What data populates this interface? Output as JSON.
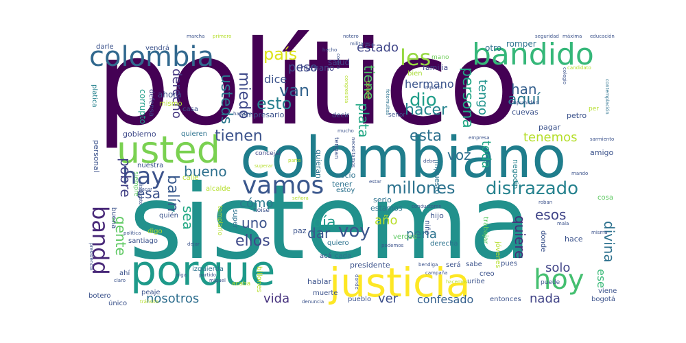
{
  "words": [
    {
      "text": "político",
      "size": 170,
      "color": "#440154",
      "rot": 0
    },
    {
      "text": "sistema",
      "size": 150,
      "color": "#21918c",
      "rot": 0
    },
    {
      "text": "colombiano",
      "size": 82,
      "color": "#1f7d8c",
      "rot": 0
    },
    {
      "text": "justicia",
      "size": 58,
      "color": "#fde725",
      "rot": 0
    },
    {
      "text": "porque",
      "size": 60,
      "color": "#1e9a8a",
      "rot": 0
    },
    {
      "text": "usted",
      "size": 54,
      "color": "#7ad151",
      "rot": 0
    },
    {
      "text": "bandido",
      "size": 44,
      "color": "#35b779",
      "rot": 0
    },
    {
      "text": "colombia",
      "size": 40,
      "color": "#31688e",
      "rot": 0
    },
    {
      "text": "hoy",
      "size": 40,
      "color": "#44bf70",
      "rot": 0
    },
    {
      "text": "vamos",
      "size": 36,
      "color": "#39568c",
      "rot": 0
    },
    {
      "text": "hay",
      "size": 34,
      "color": "#3b528b",
      "rot": 0
    },
    {
      "text": "bandd",
      "size": 32,
      "color": "#482878",
      "rot": 90
    },
    {
      "text": "disfrazado",
      "size": 26,
      "color": "#26828e",
      "rot": 0
    },
    {
      "text": "millones",
      "size": 24,
      "color": "#2c728e",
      "rot": 0
    },
    {
      "text": "les",
      "size": 32,
      "color": "#95d840",
      "rot": 0
    },
    {
      "text": "país",
      "size": 24,
      "color": "#dce319",
      "rot": 0
    },
    {
      "text": "estado",
      "size": 18,
      "color": "#404688",
      "rot": 0
    },
    {
      "text": "van",
      "size": 24,
      "color": "#33638d",
      "rot": 0
    },
    {
      "text": "esto",
      "size": 24,
      "color": "#27808e",
      "rot": 0
    },
    {
      "text": "dio",
      "size": 26,
      "color": "#1f9e89",
      "rot": 0
    },
    {
      "text": "hacer",
      "size": 22,
      "color": "#25848e",
      "rot": 0
    },
    {
      "text": "aquí",
      "size": 22,
      "color": "#2a788e",
      "rot": 0
    },
    {
      "text": "han",
      "size": 20,
      "color": "#345f8d",
      "rot": 0
    },
    {
      "text": "persona",
      "size": 22,
      "color": "#21a685",
      "rot": 90
    },
    {
      "text": "plata",
      "size": 20,
      "color": "#22a884",
      "rot": 90
    },
    {
      "text": "tiene",
      "size": 20,
      "color": "#52c569",
      "rot": 90
    },
    {
      "text": "tengo",
      "size": 18,
      "color": "#20938c",
      "rot": 90
    },
    {
      "text": "usteds",
      "size": 22,
      "color": "#2a788e",
      "rot": 90
    },
    {
      "text": "miedo",
      "size": 22,
      "color": "#3e4989",
      "rot": 90
    },
    {
      "text": "derecho",
      "size": 18,
      "color": "#453781",
      "rot": 90
    },
    {
      "text": "tienen",
      "size": 22,
      "color": "#3b528b",
      "rot": 0
    },
    {
      "text": "esta",
      "size": 22,
      "color": "#2d718e",
      "rot": 0
    },
    {
      "text": "tenemos",
      "size": 18,
      "color": "#b5de2b",
      "rot": 0
    },
    {
      "text": "voz",
      "size": 20,
      "color": "#2e6f8e",
      "rot": 0
    },
    {
      "text": "toda",
      "size": 18,
      "color": "#21a685",
      "rot": 90
    },
    {
      "text": "bueno",
      "size": 20,
      "color": "#2d708e",
      "rot": 0
    },
    {
      "text": "pobre",
      "size": 20,
      "color": "#424086",
      "rot": 90
    },
    {
      "text": "esa",
      "size": 20,
      "color": "#3b528b",
      "rot": 0
    },
    {
      "text": "balín",
      "size": 22,
      "color": "#38588c",
      "rot": 90
    },
    {
      "text": "sea",
      "size": 20,
      "color": "#22a884",
      "rot": 90
    },
    {
      "text": "gente",
      "size": 20,
      "color": "#5ec962",
      "rot": 90
    },
    {
      "text": "cómo",
      "size": 18,
      "color": "#2a788e",
      "rot": 0
    },
    {
      "text": "uno",
      "size": 20,
      "color": "#3b528b",
      "rot": 0
    },
    {
      "text": "ellos",
      "size": 22,
      "color": "#3e4989",
      "rot": 0
    },
    {
      "text": "día",
      "size": 22,
      "color": "#1f9a8a",
      "rot": 0
    },
    {
      "text": "año",
      "size": 18,
      "color": "#b8de29",
      "rot": 0
    },
    {
      "text": "voy",
      "size": 26,
      "color": "#3a548c",
      "rot": 0
    },
    {
      "text": "dar",
      "size": 20,
      "color": "#39558c",
      "rot": 0
    },
    {
      "text": "pena",
      "size": 18,
      "color": "#2c728e",
      "rot": 0
    },
    {
      "text": "esos",
      "size": 20,
      "color": "#404588",
      "rot": 0
    },
    {
      "text": "quiere",
      "size": 20,
      "color": "#472c7a",
      "rot": 90
    },
    {
      "text": "divina",
      "size": 20,
      "color": "#2d718e",
      "rot": 90
    },
    {
      "text": "solo",
      "size": 18,
      "color": "#414487",
      "rot": 0
    },
    {
      "text": "ese",
      "size": 16,
      "color": "#39b977",
      "rot": 90
    },
    {
      "text": "nada",
      "size": 18,
      "color": "#414487",
      "rot": 0
    },
    {
      "text": "nosotros",
      "size": 18,
      "color": "#2e6e8e",
      "rot": 0
    },
    {
      "text": "vida",
      "size": 18,
      "color": "#46327e",
      "rot": 0
    },
    {
      "text": "ver",
      "size": 18,
      "color": "#3c4f8a",
      "rot": 0
    },
    {
      "text": "confesado",
      "size": 16,
      "color": "#35608d",
      "rot": 0
    },
    {
      "text": "peso",
      "size": 18,
      "color": "#3e4a89",
      "rot": 0
    },
    {
      "text": "dice",
      "size": 16,
      "color": "#3b528b",
      "rot": 0
    },
    {
      "text": "hermano",
      "size": 16,
      "color": "#3a548c",
      "rot": 0
    },
    {
      "text": "salud",
      "size": 12,
      "color": "#404688",
      "rot": 0
    },
    {
      "text": "humano",
      "size": 12,
      "color": "#404688",
      "rot": 0
    },
    {
      "text": "familia",
      "size": 11,
      "color": "#404688",
      "rot": 0
    },
    {
      "text": "otro",
      "size": 12,
      "color": "#2d718e",
      "rot": 0
    },
    {
      "text": "romper",
      "size": 12,
      "color": "#2c728e",
      "rot": 0
    },
    {
      "text": "mano",
      "size": 9,
      "color": "#6ece58",
      "rot": 0
    },
    {
      "text": "bien",
      "size": 10,
      "color": "#a8db34",
      "rot": 0
    },
    {
      "text": "corrupto",
      "size": 12,
      "color": "#1f9e89",
      "rot": 90
    },
    {
      "text": "ahora",
      "size": 12,
      "color": "#3b528b",
      "rot": 0
    },
    {
      "text": "mismo",
      "size": 10,
      "color": "#b5de2b",
      "rot": 0
    },
    {
      "text": "casa",
      "size": 10,
      "color": "#3b528b",
      "rot": 0
    },
    {
      "text": "defensa",
      "size": 10,
      "color": "#404688",
      "rot": 90
    },
    {
      "text": "platica",
      "size": 10,
      "color": "#26828e",
      "rot": 90
    },
    {
      "text": "empresario",
      "size": 11,
      "color": "#3b528b",
      "rot": 0
    },
    {
      "text": "gobierno",
      "size": 11,
      "color": "#3e4989",
      "rot": 0
    },
    {
      "text": "quieren",
      "size": 10,
      "color": "#2c728e",
      "rot": 0
    },
    {
      "text": "personal",
      "size": 11,
      "color": "#3b528b",
      "rot": 90
    },
    {
      "text": "nuestra",
      "size": 10,
      "color": "#3b528b",
      "rot": 0
    },
    {
      "text": "siempre",
      "size": 9,
      "color": "#5ec962",
      "rot": 90
    },
    {
      "text": "calle",
      "size": 10,
      "color": "#b5de2b",
      "rot": 0
    },
    {
      "text": "alcalde",
      "size": 10,
      "color": "#b5de2b",
      "rot": 0
    },
    {
      "text": "concejal",
      "size": 9,
      "color": "#404688",
      "rot": 0
    },
    {
      "text": "socio",
      "size": 11,
      "color": "#2c728e",
      "rot": 0
    },
    {
      "text": "quieran",
      "size": 11,
      "color": "#2c728e",
      "rot": 90
    },
    {
      "text": "impuesto",
      "size": 11,
      "color": "#2c728e",
      "rot": 90
    },
    {
      "text": "negocio",
      "size": 11,
      "color": "#26828e",
      "rot": 90
    },
    {
      "text": "amigo",
      "size": 11,
      "color": "#3b528b",
      "rot": 0
    },
    {
      "text": "pagar",
      "size": 11,
      "color": "#3b528b",
      "rot": 0
    },
    {
      "text": "cuevas",
      "size": 11,
      "color": "#3b528b",
      "rot": 0
    },
    {
      "text": "petro",
      "size": 11,
      "color": "#3b528b",
      "rot": 0
    },
    {
      "text": "tener",
      "size": 11,
      "color": "#2c728e",
      "rot": 0
    },
    {
      "text": "estoy",
      "size": 10,
      "color": "#2c728e",
      "rot": 0
    },
    {
      "text": "serio",
      "size": 11,
      "color": "#2c728e",
      "rot": 0
    },
    {
      "text": "estamos",
      "size": 11,
      "color": "#2c728e",
      "rot": 0
    },
    {
      "text": "hijo",
      "size": 11,
      "color": "#3b528b",
      "rot": 0
    },
    {
      "text": "paz",
      "size": 11,
      "color": "#3b528b",
      "rot": 0
    },
    {
      "text": "niño",
      "size": 10,
      "color": "#3b528b",
      "rot": 90
    },
    {
      "text": "trabajar",
      "size": 10,
      "color": "#5ec962",
      "rot": 90
    },
    {
      "text": "jóvenes",
      "size": 10,
      "color": "#b5de2b",
      "rot": 90
    },
    {
      "text": "derecha",
      "size": 10,
      "color": "#2c728e",
      "rot": 0
    },
    {
      "text": "hace",
      "size": 11,
      "color": "#3b528b",
      "rot": 0
    },
    {
      "text": "donde",
      "size": 10,
      "color": "#3b528b",
      "rot": 90
    },
    {
      "text": "cosa",
      "size": 10,
      "color": "#5ec962",
      "rot": 0
    },
    {
      "text": "quién",
      "size": 10,
      "color": "#3b528b",
      "rot": 0
    },
    {
      "text": "santiago",
      "size": 10,
      "color": "#3b528b",
      "rot": 0
    },
    {
      "text": "digo",
      "size": 10,
      "color": "#b5de2b",
      "rot": 0
    },
    {
      "text": "buena",
      "size": 10,
      "color": "#3b528b",
      "rot": 90
    },
    {
      "text": "super",
      "size": 10,
      "color": "#2c728e",
      "rot": 90
    },
    {
      "text": "noise",
      "size": 9,
      "color": "#3b528b",
      "rot": 0
    },
    {
      "text": "templario",
      "size": 9,
      "color": "#b5de2b",
      "rot": 90
    },
    {
      "text": "quiero",
      "size": 10,
      "color": "#2c728e",
      "rot": 0
    },
    {
      "text": "presidente",
      "size": 11,
      "color": "#3b528b",
      "rot": 0
    },
    {
      "text": "cada",
      "size": 10,
      "color": "#2c728e",
      "rot": 0
    },
    {
      "text": "acá",
      "size": 10,
      "color": "#3b528b",
      "rot": 0
    },
    {
      "text": "será",
      "size": 10,
      "color": "#3b528b",
      "rot": 0
    },
    {
      "text": "sabe",
      "size": 10,
      "color": "#3b528b",
      "rot": 0
    },
    {
      "text": "pues",
      "size": 10,
      "color": "#3b528b",
      "rot": 0
    },
    {
      "text": "ahí",
      "size": 10,
      "color": "#3b528b",
      "rot": 0
    },
    {
      "text": "izquierda",
      "size": 10,
      "color": "#2c728e",
      "rot": 0
    },
    {
      "text": "billones",
      "size": 10,
      "color": "#b5de2b",
      "rot": 90
    },
    {
      "text": "hablar",
      "size": 11,
      "color": "#3b528b",
      "rot": 0
    },
    {
      "text": "creo",
      "size": 10,
      "color": "#3b528b",
      "rot": 0
    },
    {
      "text": "uribe",
      "size": 10,
      "color": "#3b528b",
      "rot": 0
    },
    {
      "text": "muerte",
      "size": 10,
      "color": "#3b528b",
      "rot": 0
    },
    {
      "text": "pueblo",
      "size": 10,
      "color": "#3b528b",
      "rot": 0
    },
    {
      "text": "entonces",
      "size": 10,
      "color": "#3b528b",
      "rot": 0
    },
    {
      "text": "bogotá",
      "size": 10,
      "color": "#3b528b",
      "rot": 0
    },
    {
      "text": "viene",
      "size": 10,
      "color": "#3b528b",
      "rot": 0
    },
    {
      "text": "botero",
      "size": 10,
      "color": "#3b528b",
      "rot": 0
    },
    {
      "text": "único",
      "size": 10,
      "color": "#3b528b",
      "rot": 0
    },
    {
      "text": "peaje",
      "size": 10,
      "color": "#3b528b",
      "rot": 0
    },
    {
      "text": "darle",
      "size": 10,
      "color": "#3b528b",
      "rot": 0
    },
    {
      "text": "vendrá",
      "size": 10,
      "color": "#3b528b",
      "rot": 0
    },
    {
      "text": "verdad",
      "size": 10,
      "color": "#5ec962",
      "rot": 0
    },
    {
      "text": "decir",
      "size": 10,
      "color": "#3b528b",
      "rot": 0
    },
    {
      "text": "señor",
      "size": 9,
      "color": "#3b528b",
      "rot": 0
    },
    {
      "text": "acaba",
      "size": 9,
      "color": "#b5de2b",
      "rot": 0
    },
    {
      "text": "puede",
      "size": 9,
      "color": "#3b528b",
      "rot": 0
    },
    {
      "text": "seguridad",
      "size": 7,
      "color": "#3b528b",
      "rot": 0
    },
    {
      "text": "educación",
      "size": 7,
      "color": "#3b528b",
      "rot": 0
    },
    {
      "text": "máxima",
      "size": 7,
      "color": "#3b528b",
      "rot": 0
    },
    {
      "text": "marcha",
      "size": 7,
      "color": "#3b528b",
      "rot": 0
    },
    {
      "text": "primero",
      "size": 7,
      "color": "#b5de2b",
      "rot": 0
    },
    {
      "text": "notero",
      "size": 7,
      "color": "#3b528b",
      "rot": 0
    },
    {
      "text": "militares",
      "size": 7,
      "color": "#3b528b",
      "rot": 0
    },
    {
      "text": "contra",
      "size": 7,
      "color": "#3b528b",
      "rot": 90
    },
    {
      "text": "candidato",
      "size": 7,
      "color": "#b5de2b",
      "rot": 0
    },
    {
      "text": "colegio",
      "size": 7,
      "color": "#3b528b",
      "rot": 90
    },
    {
      "text": "contemplación",
      "size": 7,
      "color": "#2c728e",
      "rot": 90
    },
    {
      "text": "per",
      "size": 9,
      "color": "#b5de2b",
      "rot": 0
    },
    {
      "text": "impunidad",
      "size": 8,
      "color": "#3b528b",
      "rot": 0
    },
    {
      "text": "congresista",
      "size": 7,
      "color": "#b5de2b",
      "rot": 90
    },
    {
      "text": "policía",
      "size": 8,
      "color": "#b5de2b",
      "rot": 90
    },
    {
      "text": "importa",
      "size": 7,
      "color": "#3b528b",
      "rot": 0
    },
    {
      "text": "fotomultas",
      "size": 7,
      "color": "#2c728e",
      "rot": 90
    },
    {
      "text": "hambre",
      "size": 7,
      "color": "#3b528b",
      "rot": 0
    },
    {
      "text": "mucho",
      "size": 7,
      "color": "#3b528b",
      "rot": 0
    },
    {
      "text": "tengan",
      "size": 9,
      "color": "#3b528b",
      "rot": 90
    },
    {
      "text": "necesitamos",
      "size": 7,
      "color": "#3b528b",
      "rot": 90
    },
    {
      "text": "empresa",
      "size": 7,
      "color": "#3b528b",
      "rot": 0
    },
    {
      "text": "sarmiento",
      "size": 7,
      "color": "#3b528b",
      "rot": 0
    },
    {
      "text": "superar",
      "size": 7,
      "color": "#b5de2b",
      "rot": 0
    },
    {
      "text": "parte",
      "size": 7,
      "color": "#b5de2b",
      "rot": 0
    },
    {
      "text": "debe",
      "size": 7,
      "color": "#3b528b",
      "rot": 0
    },
    {
      "text": "mando",
      "size": 7,
      "color": "#3b528b",
      "rot": 0
    },
    {
      "text": "dispuesto",
      "size": 7,
      "color": "#3b528b",
      "rot": 90
    },
    {
      "text": "sacar",
      "size": 7,
      "color": "#3b528b",
      "rot": 0
    },
    {
      "text": "estar",
      "size": 7,
      "color": "#3b528b",
      "rot": 0
    },
    {
      "text": "señora",
      "size": 7,
      "color": "#b5de2b",
      "rot": 0
    },
    {
      "text": "conductores",
      "size": 7,
      "color": "#3b528b",
      "rot": 0
    },
    {
      "text": "roban",
      "size": 7,
      "color": "#3b528b",
      "rot": 0
    },
    {
      "text": "mala",
      "size": 7,
      "color": "#3b528b",
      "rot": 0
    },
    {
      "text": "misma",
      "size": 7,
      "color": "#3b528b",
      "rot": 0
    },
    {
      "text": "política",
      "size": 7,
      "color": "#3b528b",
      "rot": 0
    },
    {
      "text": "dejar",
      "size": 7,
      "color": "#3b528b",
      "rot": 0
    },
    {
      "text": "podemos",
      "size": 7,
      "color": "#3b528b",
      "rot": 0
    },
    {
      "text": "presidencia",
      "size": 7,
      "color": "#3b528b",
      "rot": 90
    },
    {
      "text": "oiga",
      "size": 7,
      "color": "#3b528b",
      "rot": 0
    },
    {
      "text": "partido",
      "size": 7,
      "color": "#3b528b",
      "rot": 0
    },
    {
      "text": "miguel",
      "size": 7,
      "color": "#3b528b",
      "rot": 0
    },
    {
      "text": "claro",
      "size": 7,
      "color": "#3b528b",
      "rot": 0
    },
    {
      "text": "campaña",
      "size": 7,
      "color": "#3b528b",
      "rot": 0
    },
    {
      "text": "bendiga",
      "size": 7,
      "color": "#3b528b",
      "rot": 0
    },
    {
      "text": "hacemos",
      "size": 7,
      "color": "#b5de2b",
      "rot": 0
    },
    {
      "text": "tránsito",
      "size": 7,
      "color": "#b5de2b",
      "rot": 0
    },
    {
      "text": "denuncia",
      "size": 7,
      "color": "#3b528b",
      "rot": 0
    },
    {
      "text": "donde",
      "size": 7,
      "color": "#3b528b",
      "rot": 90
    },
    {
      "text": "hecho",
      "size": 7,
      "color": "#3b528b",
      "rot": 0
    }
  ]
}
